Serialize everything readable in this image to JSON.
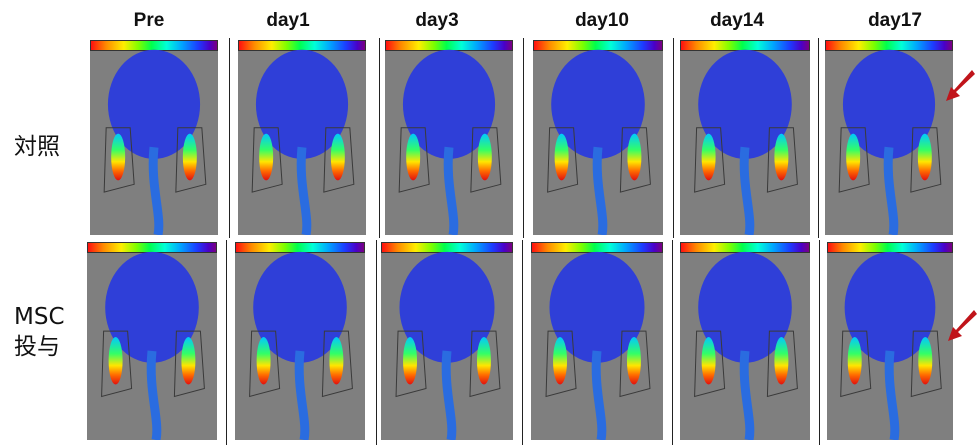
{
  "columns": [
    "Pre",
    "day1",
    "day3",
    "day10",
    "day14",
    "day17"
  ],
  "rows": [
    {
      "label_lines": [
        "対照"
      ]
    },
    {
      "label_lines": [
        "MSC",
        "投与"
      ]
    }
  ],
  "colors": {
    "panel_bg": "#7f7f7f",
    "body_blue": "#2f3fd8",
    "arrow": "#c0141a"
  },
  "markers": {
    "arrow_panels": [
      "row1-day17",
      "row2-day17"
    ]
  }
}
